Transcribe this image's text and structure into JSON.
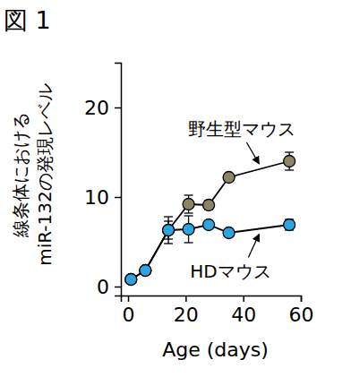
{
  "chart_data": {
    "type": "line",
    "title": "図 1",
    "x_label": "Age (days)",
    "y_label": [
      "線条体における",
      "miR-132の発現レベル"
    ],
    "x": [
      1,
      6,
      14,
      21,
      28,
      35,
      56
    ],
    "series": [
      {
        "name": "野生型マウス",
        "color": "#8c8462",
        "marker": "circle",
        "values": [
          0.8,
          1.8,
          6.3,
          9.2,
          9.1,
          12.2,
          14.0
        ],
        "errors": [
          0.3,
          0.3,
          1.5,
          1.0,
          0.5,
          0.3,
          1.0
        ]
      },
      {
        "name": "HDマウス",
        "color": "#2aa5e0",
        "marker": "circle",
        "values": [
          0.8,
          1.8,
          6.3,
          6.4,
          6.9,
          6.0,
          6.9
        ],
        "errors": [
          0.3,
          0.3,
          1.0,
          1.5,
          0.3,
          0.3,
          0.6
        ]
      }
    ],
    "xlim": [
      -2.5,
      60
    ],
    "xticks": [
      0,
      20,
      40,
      60
    ],
    "ylim": [
      -1,
      25
    ],
    "yticks": [
      0,
      10,
      20
    ],
    "grid": false
  }
}
